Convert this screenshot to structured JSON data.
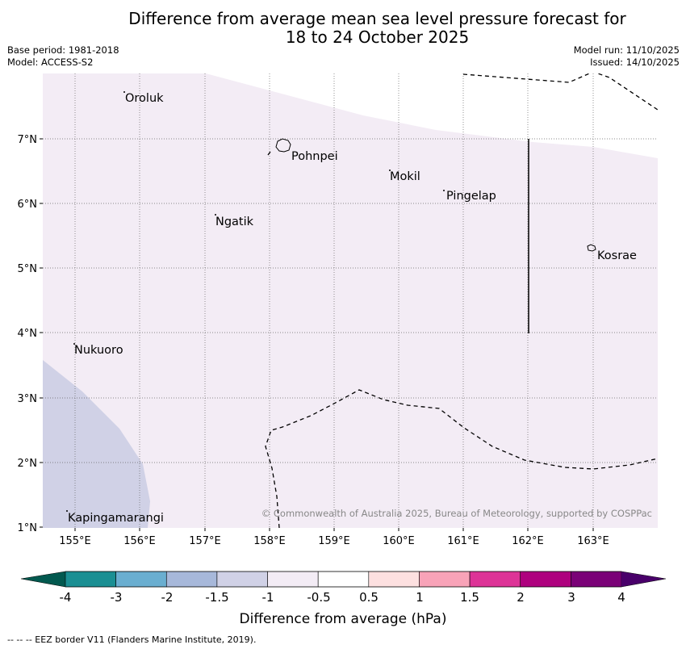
{
  "title": {
    "line1": "Difference from average mean sea level pressure forecast for",
    "line2": "18 to 24 October 2025"
  },
  "meta": {
    "base_period": "Base period: 1981-2018",
    "model": "Model: ACCESS-S2",
    "model_run": "Model run: 11/10/2025",
    "issued": "Issued: 14/10/2025"
  },
  "map": {
    "lat_labels": [
      "1°N",
      "2°N",
      "3°N",
      "4°N",
      "5°N",
      "6°N",
      "7°N"
    ],
    "lon_labels": [
      "155°E",
      "156°E",
      "157°E",
      "158°E",
      "159°E",
      "160°E",
      "161°E",
      "162°E",
      "163°E"
    ],
    "places": [
      "Oroluk",
      "Pohnpei",
      "Mokil",
      "Pingelap",
      "Ngatik",
      "Kosrae",
      "Nukuoro",
      "Kapingamarangi"
    ],
    "copyright": "© Commonwealth of Australia 2025, Bureau of Meteorology, supported by COSPPac",
    "fill_colors": {
      "minus_1_5_to_minus_1": "#d0d1e6",
      "minus_1_to_minus_0_5": "#f3ecf5",
      "minus_0_5_to_0_5": "#ffffff"
    }
  },
  "legend": {
    "tick_labels": [
      "-4",
      "-3",
      "-2",
      "-1.5",
      "-1",
      "-0.5",
      "0.5",
      "1",
      "1.5",
      "2",
      "3",
      "4"
    ],
    "colors": [
      "#1b8f93",
      "#6aaed0",
      "#a7b8da",
      "#d0d1e6",
      "#f3ecf5",
      "#ffffff",
      "#fde0e0",
      "#f8a3b8",
      "#dd3497",
      "#ae017e",
      "#7a0177"
    ],
    "under_color": "#02594f",
    "over_color": "#49006a",
    "label": "Difference from average (hPa)"
  },
  "footer": "--  --  -- EEZ border V11 (Flanders Marine Institute, 2019)."
}
